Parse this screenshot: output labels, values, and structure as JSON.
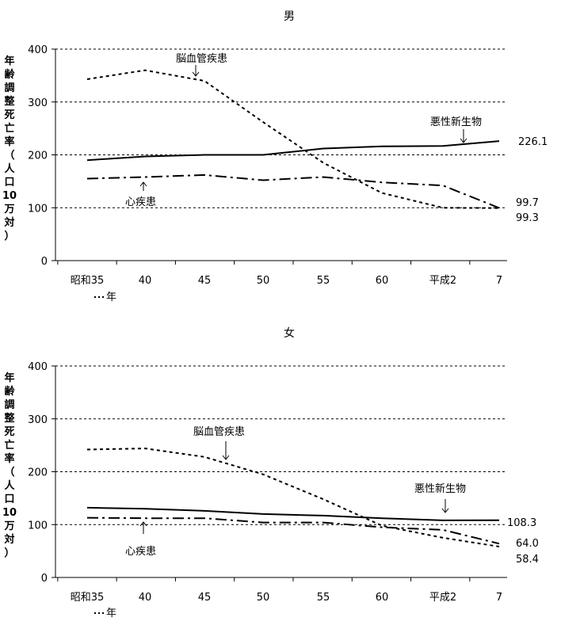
{
  "chart_data": [
    {
      "type": "line",
      "title": "男",
      "ylabel_chars": [
        "年",
        "齢",
        "調",
        "整",
        "死",
        "亡",
        "率",
        "（",
        "人",
        "口",
        "10",
        "万",
        "対",
        "）"
      ],
      "xunit": "年",
      "categories": [
        "昭和35",
        "40",
        "45",
        "50",
        "55",
        "60",
        "平成2",
        "7"
      ],
      "ylim": [
        0,
        400
      ],
      "yticks": [
        "0",
        "100",
        "200",
        "300",
        "400"
      ],
      "grid": true,
      "series": [
        {
          "name": "悪性新生物",
          "style": "solid",
          "values": [
            190,
            197,
            200,
            200,
            212,
            216,
            217,
            226.1
          ]
        },
        {
          "name": "脳血管疾患",
          "style": "dotted",
          "values": [
            343,
            360,
            340,
            262,
            185,
            128,
            100,
            99.3
          ]
        },
        {
          "name": "心疾患",
          "style": "dashdot",
          "values": [
            155,
            158,
            162,
            152,
            158,
            148,
            142,
            99.7
          ]
        }
      ],
      "end_labels": [
        "226.1",
        "99.7",
        "99.3"
      ]
    },
    {
      "type": "line",
      "title": "女",
      "ylabel_chars": [
        "年",
        "齢",
        "調",
        "整",
        "死",
        "亡",
        "率",
        "（",
        "人",
        "口",
        "10",
        "万",
        "対",
        "）"
      ],
      "xunit": "年",
      "categories": [
        "昭和35",
        "40",
        "45",
        "50",
        "55",
        "60",
        "平成2",
        "7"
      ],
      "ylim": [
        0,
        400
      ],
      "yticks": [
        "0",
        "100",
        "200",
        "300",
        "400"
      ],
      "grid": true,
      "series": [
        {
          "name": "悪性新生物",
          "style": "solid",
          "values": [
            132,
            130,
            126,
            120,
            117,
            112,
            108,
            108.3
          ]
        },
        {
          "name": "脳血管疾患",
          "style": "dotted",
          "values": [
            242,
            244,
            228,
            195,
            148,
            98,
            75,
            58.4
          ]
        },
        {
          "name": "心疾患",
          "style": "dashdot",
          "values": [
            113,
            112,
            112,
            104,
            104,
            95,
            90,
            64.0
          ]
        }
      ],
      "end_labels": [
        "108.3",
        "64.0",
        "58.4"
      ]
    }
  ]
}
